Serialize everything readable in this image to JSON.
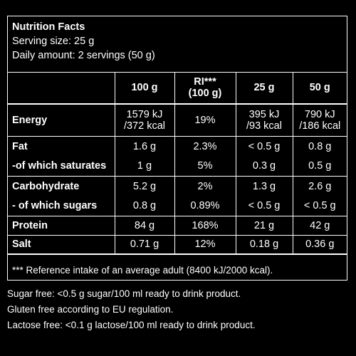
{
  "header": {
    "title": "Nutrition Facts",
    "serving_size": "Serving size: 25 g",
    "daily_amount": "Daily amount: 2 servings (50 g)"
  },
  "table": {
    "columns": [
      "100 g",
      "RI***",
      "(100 g)",
      "25 g",
      "50 g"
    ],
    "rows": {
      "energy": [
        "Energy",
        "1579 kJ",
        "/372 kcal",
        "19%",
        "395 kJ",
        "/93 kcal",
        "790 kJ",
        "/186 kcal"
      ],
      "fat": [
        "Fat",
        "1.6 g",
        "2.3%",
        "< 0.5 g",
        "0.8 g"
      ],
      "saturates": [
        "-of which saturates",
        "1 g",
        "5%",
        "0.3 g",
        "0.5 g"
      ],
      "carbohydrate": [
        "Carbohydrate",
        "5.2 g",
        "2%",
        "1.3 g",
        "2.6 g"
      ],
      "sugars": [
        "- of which sugars",
        "0.8 g",
        "0.89%",
        "< 0.5 g",
        "< 0.5 g"
      ],
      "protein": [
        "Protein",
        "84 g",
        "168%",
        "21 g",
        "42 g"
      ],
      "salt": [
        "Salt",
        "0.71 g",
        "12%",
        "0.18 g",
        "0.36 g"
      ]
    }
  },
  "footnote": "*** Reference intake of an average adult (8400 kJ/2000 kcal).",
  "notes": [
    "Sugar free: <0.5 g sugar/100 ml ready to drink product.",
    "Gluten free according to EU regulation.",
    "Lactose free: <0.1 g lactose/100 ml ready to drink product."
  ]
}
